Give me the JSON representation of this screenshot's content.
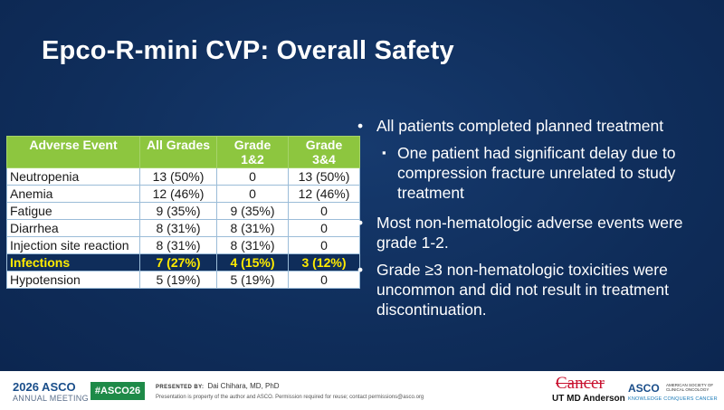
{
  "slide": {
    "title": "Epco-R-mini CVP: Overall Safety",
    "table": {
      "headers": [
        {
          "line1": "Adverse Event",
          "line2": ""
        },
        {
          "line1": "All Grades",
          "line2": ""
        },
        {
          "line1": "Grade",
          "line2": "1&2"
        },
        {
          "line1": "Grade",
          "line2": "3&4"
        }
      ],
      "rows": [
        {
          "event": "Neutropenia",
          "all": "13 (50%)",
          "g12": "0",
          "g34": "13 (50%)"
        },
        {
          "event": "Anemia",
          "all": "12 (46%)",
          "g12": "0",
          "g34": "12 (46%)"
        },
        {
          "event": "Fatigue",
          "all": "9 (35%)",
          "g12": "9 (35%)",
          "g34": "0"
        },
        {
          "event": "Diarrhea",
          "all": "8 (31%)",
          "g12": "8 (31%)",
          "g34": "0"
        },
        {
          "event": "Injection site reaction",
          "all": "8 (31%)",
          "g12": "8 (31%)",
          "g34": "0"
        },
        {
          "event": "Infections",
          "all": "7 (27%)",
          "g12": "4 (15%)",
          "g34": "3 (12%)",
          "highlight": true
        },
        {
          "event": "Hypotension",
          "all": "5 (19%)",
          "g12": "5 (19%)",
          "g34": "0"
        }
      ]
    },
    "bullets": [
      {
        "text": "All patients completed planned treatment",
        "sub": [
          "One patient had significant delay due to compression fracture unrelated to study treatment"
        ]
      },
      {
        "text": "Most non-hematologic adverse events were grade 1-2.",
        "sub": []
      },
      {
        "text": "Grade ≥3 non-hematologic toxicities were uncommon and did not result in treatment discontinuation.",
        "sub": []
      }
    ],
    "bullet_glyph": "•",
    "subbullet_glyph": "▪"
  },
  "footer": {
    "meeting_year": "2026 ASCO",
    "meeting_name": "ANNUAL MEETING",
    "hashtag": "#ASCO26",
    "presented_by_label": "PRESENTED BY:",
    "presenter": "Dai Chihara, MD, PhD",
    "notice": "Presentation is property of the author and ASCO. Permission required for reuse; contact permissions@asco.org",
    "logo_cancer": "Cancer",
    "logo_mda": "UT MD Anderson",
    "asco_logo": "ASCO",
    "asco_sub": "AMERICAN SOCIETY OF CLINICAL ONCOLOGY",
    "asco_tagline": "KNOWLEDGE CONQUERS CANCER"
  },
  "colors": {
    "background": "#10305e",
    "header_green": "#8dc63f",
    "highlight_yellow": "#ffeb00",
    "hashtag_green": "#1e8a48"
  }
}
